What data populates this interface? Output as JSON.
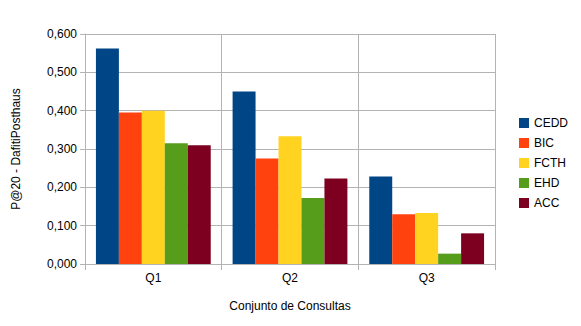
{
  "chart_data": {
    "type": "bar",
    "x_label": "Conjunto de Consultas",
    "y_label": "P@20 - DafitiPosthaus",
    "categories": [
      "Q1",
      "Q2",
      "Q3"
    ],
    "series": [
      {
        "name": "CEDD",
        "color": "#004586",
        "values": [
          0.562,
          0.45,
          0.228
        ]
      },
      {
        "name": "BIC",
        "color": "#ff420e",
        "values": [
          0.395,
          0.275,
          0.13
        ]
      },
      {
        "name": "FCTH",
        "color": "#ffd320",
        "values": [
          0.4,
          0.333,
          0.133
        ]
      },
      {
        "name": "EHD",
        "color": "#579d1c",
        "values": [
          0.315,
          0.172,
          0.027
        ]
      },
      {
        "name": "ACC",
        "color": "#7e0021",
        "values": [
          0.31,
          0.223,
          0.08
        ]
      }
    ],
    "ylim": [
      0,
      0.6
    ],
    "yticks": [
      {
        "value": 0,
        "label": "0,000"
      },
      {
        "value": 0.1,
        "label": "0,100"
      },
      {
        "value": 0.2,
        "label": "0,200"
      },
      {
        "value": 0.3,
        "label": "0,300"
      },
      {
        "value": 0.4,
        "label": "0,400"
      },
      {
        "value": 0.5,
        "label": "0,500"
      },
      {
        "value": 0.6,
        "label": "0,600"
      }
    ],
    "grid": true,
    "legend": "right"
  }
}
